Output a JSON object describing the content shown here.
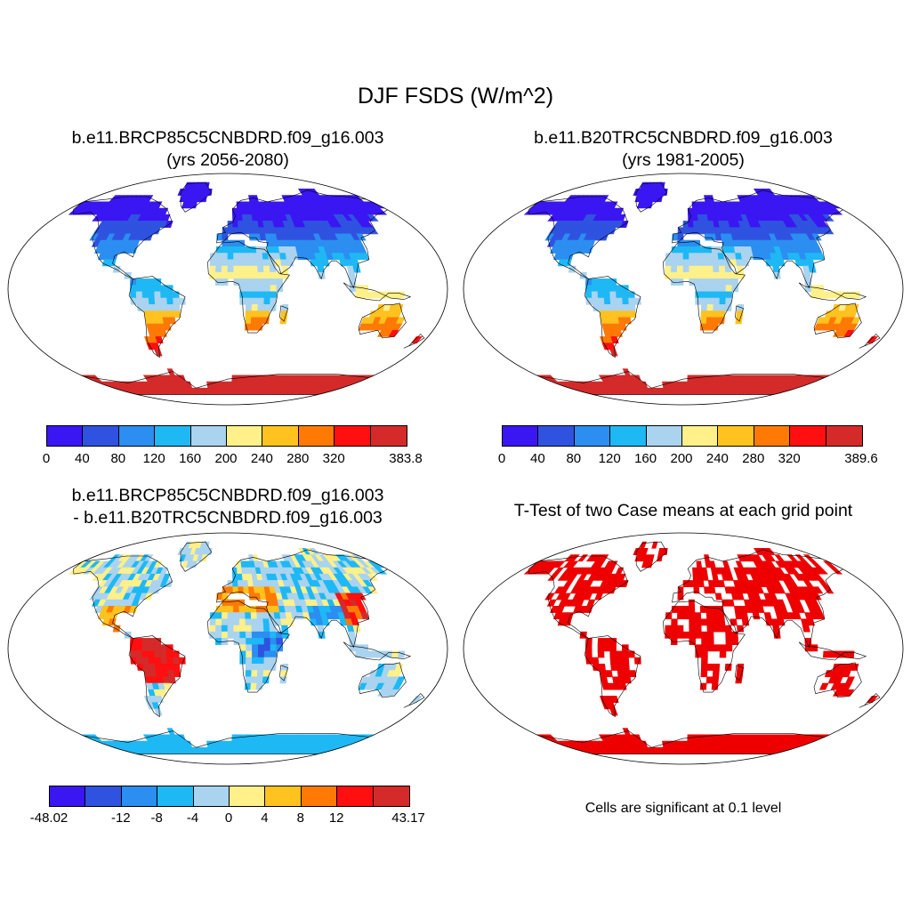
{
  "figure": {
    "title": "DJF FSDS (W/m^2)"
  },
  "panels": [
    {
      "id": "case",
      "title_line1": "b.e11.BRCP85C5CNBDRD.f09_g16.003",
      "title_line2": "(yrs 2056-2080)",
      "colorbar": {
        "labels": [
          "0",
          "40",
          "80",
          "120",
          "160",
          "200",
          "240",
          "280",
          "320",
          "383.8"
        ],
        "colors": [
          "#3a16f2",
          "#2f52e0",
          "#2b8ef0",
          "#1eb8f5",
          "#a9d3ee",
          "#fff08a",
          "#ffc21f",
          "#ff7a05",
          "#ff0f0f",
          "#d42a2a"
        ]
      }
    },
    {
      "id": "control",
      "title_line1": "b.e11.B20TRC5CNBDRD.f09_g16.003",
      "title_line2": "(yrs 1981-2005)",
      "colorbar": {
        "labels": [
          "0",
          "40",
          "80",
          "120",
          "160",
          "200",
          "240",
          "280",
          "320",
          "389.6"
        ],
        "colors": [
          "#3a16f2",
          "#2f52e0",
          "#2b8ef0",
          "#1eb8f5",
          "#a9d3ee",
          "#fff08a",
          "#ffc21f",
          "#ff7a05",
          "#ff0f0f",
          "#d42a2a"
        ]
      }
    },
    {
      "id": "difference",
      "title_line1": "b.e11.BRCP85C5CNBDRD.f09_g16.003",
      "title_line2": "- b.e11.B20TRC5CNBDRD.f09_g16.003",
      "colorbar": {
        "labels": [
          "-48.02",
          "-12",
          "-8",
          "-4",
          "0",
          "4",
          "8",
          "12",
          "43.17"
        ],
        "colors": [
          "#3a16f2",
          "#2f52e0",
          "#2b8ef0",
          "#1eb8f5",
          "#a9d3ee",
          "#fff08a",
          "#ffc21f",
          "#ff7a05",
          "#ff0f0f",
          "#d42a2a"
        ]
      }
    },
    {
      "id": "ttest",
      "title_line1": "T-Test of two Case means at each grid point",
      "note": "Cells are significant at 0.1 level",
      "significant_color": "#ee0000"
    }
  ]
}
